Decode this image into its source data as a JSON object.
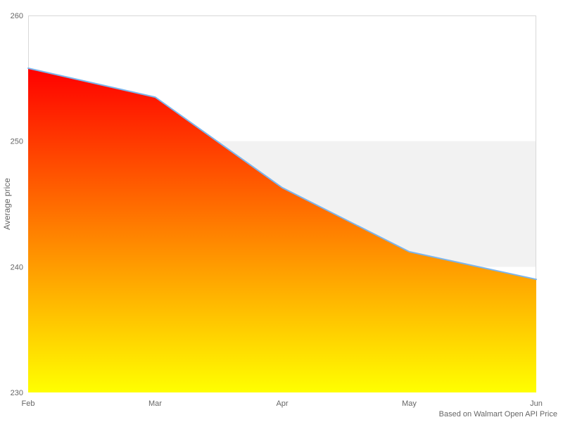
{
  "chart_data": {
    "type": "area",
    "title": "",
    "categories": [
      "Feb",
      "Mar",
      "Apr",
      "May",
      "Jun"
    ],
    "series": [
      {
        "name": "Average price",
        "values": [
          255.8,
          253.5,
          246.3,
          241.2,
          239.0
        ]
      }
    ],
    "xlabel": "",
    "ylabel": "Average price",
    "ylim": [
      230,
      260
    ],
    "yticks": [
      230,
      240,
      250,
      260
    ],
    "plot_band": {
      "from": 240,
      "to": 250,
      "color": "#f2f2f2"
    },
    "line_color": "#7cb5ec",
    "area_gradient_top": "#ff0000",
    "area_gradient_bottom": "#ffff00",
    "border_color": "#d8d8d8",
    "label_color": "#666666",
    "grid": "border-only",
    "legend": "none",
    "credits": "Based on Walmart Open API Price"
  }
}
